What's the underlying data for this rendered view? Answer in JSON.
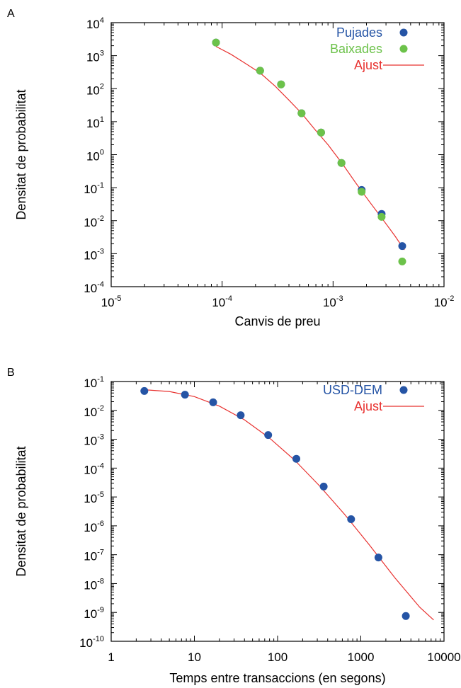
{
  "chart_data": [
    {
      "panel": "A",
      "type": "scatter",
      "xlabel": "Canvis de preu",
      "ylabel": "Densitat de probabilitat",
      "xscale": "log",
      "yscale": "log",
      "xlim": [
        1e-05,
        0.01
      ],
      "ylim": [
        0.0001,
        10000.0
      ],
      "x_ticks": [
        {
          "value": 1e-05,
          "base": "10",
          "exp": "-5"
        },
        {
          "value": 0.0001,
          "base": "10",
          "exp": "-4"
        },
        {
          "value": 0.001,
          "base": "10",
          "exp": "-3"
        },
        {
          "value": 0.01,
          "base": "10",
          "exp": "-2"
        }
      ],
      "y_ticks": [
        {
          "value": 0.0001,
          "base": "10",
          "exp": "-4"
        },
        {
          "value": 0.001,
          "base": "10",
          "exp": "-3"
        },
        {
          "value": 0.01,
          "base": "10",
          "exp": "-2"
        },
        {
          "value": 0.1,
          "base": "10",
          "exp": "-1"
        },
        {
          "value": 1.0,
          "base": "10",
          "exp": "0"
        },
        {
          "value": 10.0,
          "base": "10",
          "exp": "1"
        },
        {
          "value": 100.0,
          "base": "10",
          "exp": "2"
        },
        {
          "value": 1000.0,
          "base": "10",
          "exp": "3"
        },
        {
          "value": 10000.0,
          "base": "10",
          "exp": "4"
        }
      ],
      "legend_position": "top-right",
      "series": [
        {
          "name": "Pujades",
          "kind": "points",
          "color": "#2554a5",
          "x": [
            8.8e-05,
            0.00022,
            0.00034,
            0.00052,
            0.00078,
            0.00119,
            0.00181,
            0.00274,
            0.0042
          ],
          "y": [
            2500,
            350,
            135,
            18,
            4.7,
            0.56,
            0.085,
            0.016,
            0.0017
          ]
        },
        {
          "name": "Baixades",
          "kind": "points",
          "color": "#6cc24a",
          "x": [
            8.8e-05,
            0.00022,
            0.00034,
            0.00052,
            0.00078,
            0.00119,
            0.00181,
            0.00274,
            0.0042
          ],
          "y": [
            2500,
            350,
            135,
            18,
            4.7,
            0.56,
            0.075,
            0.013,
            0.00058
          ]
        },
        {
          "name": "Ajust",
          "kind": "line",
          "color": "#e8312f",
          "x": [
            8.8e-05,
            0.00012,
            0.00016,
            0.00022,
            0.0003,
            0.0004,
            0.00052,
            0.00068,
            0.0009,
            0.0012,
            0.0016,
            0.0021,
            0.0028,
            0.0036,
            0.0044
          ],
          "y": [
            1900,
            1100,
            600,
            300,
            120,
            45,
            18,
            6,
            2,
            0.56,
            0.14,
            0.04,
            0.011,
            0.0035,
            0.0013
          ]
        }
      ]
    },
    {
      "panel": "B",
      "type": "scatter",
      "xlabel": "Temps entre transaccions (en segons)",
      "ylabel": "Densitat de probabilitat",
      "xscale": "log",
      "yscale": "log",
      "xlim": [
        1,
        10000
      ],
      "ylim": [
        1e-10,
        0.1
      ],
      "x_ticks": [
        {
          "value": 1,
          "label": "1"
        },
        {
          "value": 10,
          "label": "10"
        },
        {
          "value": 100,
          "label": "100"
        },
        {
          "value": 1000,
          "label": "1000"
        },
        {
          "value": 10000,
          "label": "10000"
        }
      ],
      "y_ticks": [
        {
          "value": 1e-10,
          "base": "10",
          "exp": "-10"
        },
        {
          "value": 1e-09,
          "base": "10",
          "exp": "-9"
        },
        {
          "value": 1e-08,
          "base": "10",
          "exp": "-8"
        },
        {
          "value": 1e-07,
          "base": "10",
          "exp": "-7"
        },
        {
          "value": 1e-06,
          "base": "10",
          "exp": "-6"
        },
        {
          "value": 1e-05,
          "base": "10",
          "exp": "-5"
        },
        {
          "value": 0.0001,
          "base": "10",
          "exp": "-4"
        },
        {
          "value": 0.001,
          "base": "10",
          "exp": "-3"
        },
        {
          "value": 0.01,
          "base": "10",
          "exp": "-2"
        },
        {
          "value": 0.1,
          "base": "10",
          "exp": "-1"
        }
      ],
      "legend_position": "top-right",
      "series": [
        {
          "name": "USD-DEM",
          "kind": "points",
          "color": "#2554a5",
          "x": [
            2.5,
            7.7,
            16.8,
            36,
            77,
            168,
            358,
            765,
            1630,
            3480
          ],
          "y": [
            0.047,
            0.035,
            0.019,
            0.0068,
            0.0014,
            0.00021,
            2.3e-05,
            1.7e-06,
            8e-08,
            7.5e-10
          ]
        },
        {
          "name": "Ajust",
          "kind": "line",
          "color": "#e8312f",
          "x": [
            2.5,
            5,
            10,
            20,
            40,
            80,
            160,
            320,
            640,
            1280,
            2560,
            5120,
            7500
          ],
          "y": [
            0.052,
            0.045,
            0.03,
            0.014,
            0.0047,
            0.0011,
            0.00019,
            2.4e-05,
            2.5e-06,
            2.1e-07,
            1.6e-08,
            1.5e-09,
            5.5e-10
          ]
        }
      ]
    }
  ]
}
